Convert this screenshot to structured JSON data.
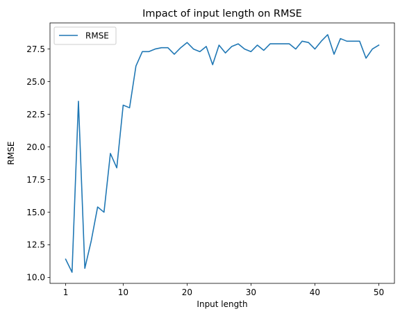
{
  "chart_data": {
    "type": "line",
    "title": "Impact of input length on RMSE",
    "xlabel": "Input length",
    "ylabel": "RMSE",
    "xlim": [
      -1.45,
      52.45
    ],
    "ylim": [
      9.55,
      29.5
    ],
    "xticks": [
      1,
      10,
      20,
      30,
      40,
      50
    ],
    "xtick_labels": [
      "1",
      "10",
      "20",
      "30",
      "40",
      "50"
    ],
    "yticks": [
      10.0,
      12.5,
      15.0,
      17.5,
      20.0,
      22.5,
      25.0,
      27.5
    ],
    "ytick_labels": [
      "10.0",
      "12.5",
      "15.0",
      "17.5",
      "20.0",
      "22.5",
      "25.0",
      "27.5"
    ],
    "grid": false,
    "legend": {
      "position": "top-left",
      "entries": [
        "RMSE"
      ]
    },
    "series": [
      {
        "name": "RMSE",
        "color": "#1f77b4",
        "x": [
          1,
          2,
          3,
          4,
          5,
          6,
          7,
          8,
          9,
          10,
          11,
          12,
          13,
          14,
          15,
          16,
          17,
          18,
          19,
          20,
          21,
          22,
          23,
          24,
          25,
          26,
          27,
          28,
          29,
          30,
          31,
          32,
          33,
          34,
          35,
          36,
          37,
          38,
          39,
          40,
          41,
          42,
          43,
          44,
          45,
          46,
          47,
          48,
          49,
          50
        ],
        "values": [
          11.4,
          10.4,
          23.5,
          10.7,
          12.8,
          15.4,
          15.0,
          19.5,
          18.4,
          23.2,
          23.0,
          26.2,
          27.3,
          27.3,
          27.5,
          27.6,
          27.6,
          27.1,
          27.6,
          28.0,
          27.5,
          27.3,
          27.7,
          26.3,
          27.8,
          27.2,
          27.7,
          27.9,
          27.5,
          27.3,
          27.8,
          27.4,
          27.9,
          27.9,
          27.9,
          27.9,
          27.5,
          28.1,
          28.0,
          27.5,
          28.1,
          28.6,
          27.1,
          28.3,
          28.1,
          28.1,
          28.1,
          26.8,
          27.5,
          27.8
        ]
      }
    ]
  }
}
